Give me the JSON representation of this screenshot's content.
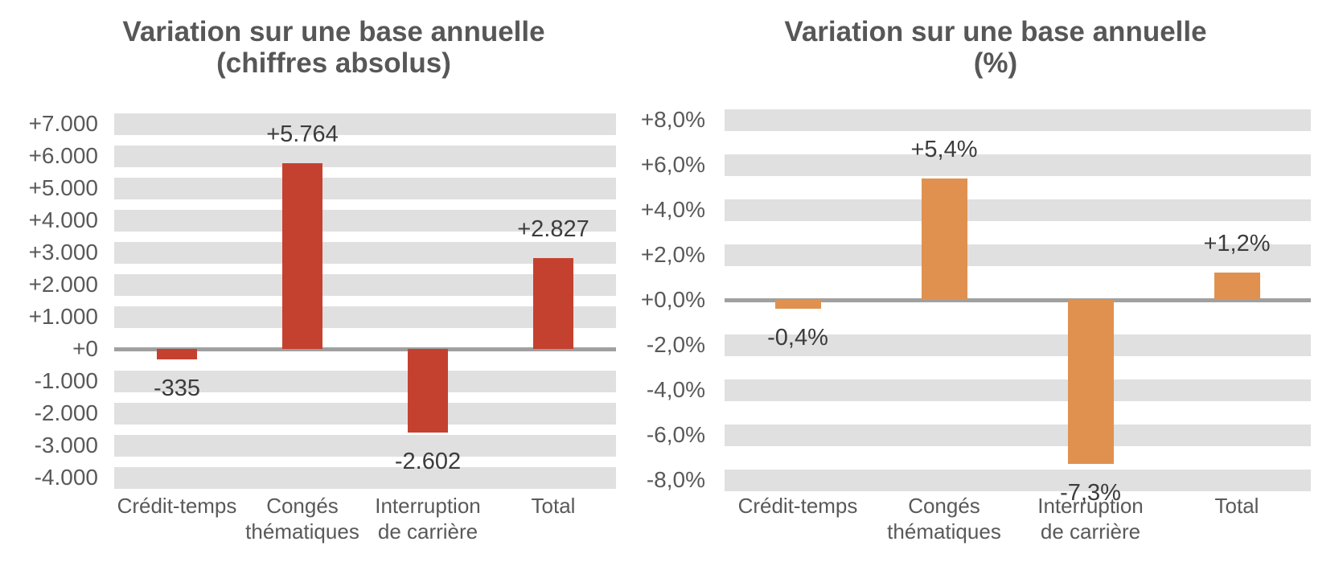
{
  "page": {
    "background_color": "#ffffff",
    "text_color_titles": "#575757",
    "text_color_axis": "#595959",
    "text_color_data_labels": "#3c3c3c"
  },
  "chart_data": [
    {
      "type": "bar",
      "title": {
        "line1": "Variation sur une base annuelle",
        "line2": "(chiffres absolus)"
      },
      "categories": [
        [
          "Crédit-temps"
        ],
        [
          "Congés",
          "thématiques"
        ],
        [
          "Interruption",
          "de carrière"
        ],
        [
          "Total"
        ]
      ],
      "values": [
        -335,
        5764,
        -2602,
        2827
      ],
      "value_labels": [
        "-335",
        "+5.764",
        "-2.602",
        "+2.827"
      ],
      "bar_color": "#c5412f",
      "axis": {
        "ylim": [
          -4000,
          7000
        ],
        "step": 1000,
        "tick_labels": [
          "+7.000",
          "+6.000",
          "+5.000",
          "+4.000",
          "+3.000",
          "+2.000",
          "+1.000",
          "+0",
          "-1.000",
          "-2.000",
          "-3.000",
          "-4.000"
        ]
      },
      "grid": {
        "style": "striped-horizontal-bands",
        "band_color": "#e0e0e0",
        "zero_line_color": "#a0a0a0",
        "grid_on": true
      },
      "legend_position": "none"
    },
    {
      "type": "bar",
      "title": {
        "line1": "Variation sur une base annuelle",
        "line2": "(%)"
      },
      "categories": [
        [
          "Crédit-temps"
        ],
        [
          "Congés",
          "thématiques"
        ],
        [
          "Interruption",
          "de carrière"
        ],
        [
          "Total"
        ]
      ],
      "values": [
        -0.4,
        5.4,
        -7.3,
        1.2
      ],
      "value_labels": [
        "-0,4%",
        "+5,4%",
        "-7,3%",
        "+1,2%"
      ],
      "bar_color": "#e0914f",
      "axis": {
        "ylim": [
          -8,
          8
        ],
        "step": 2,
        "tick_labels": [
          "+8,0%",
          "+6,0%",
          "+4,0%",
          "+2,0%",
          "+0,0%",
          "-2,0%",
          "-4,0%",
          "-6,0%",
          "-8,0%"
        ]
      },
      "grid": {
        "style": "striped-horizontal-bands",
        "band_color": "#e0e0e0",
        "zero_line_color": "#a0a0a0",
        "grid_on": true
      },
      "legend_position": "none"
    }
  ]
}
